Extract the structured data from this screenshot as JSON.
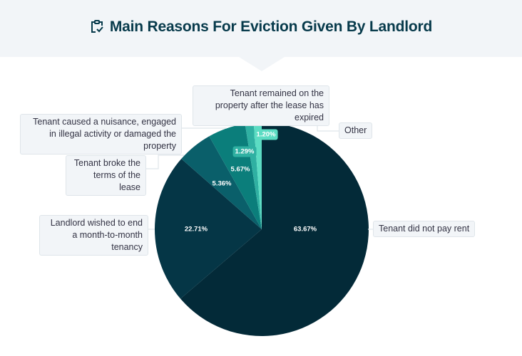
{
  "header": {
    "title": "Main Reasons For Eviction Given By Landlord",
    "icon": "clipboard-check-icon"
  },
  "chart_data": {
    "type": "pie",
    "title": "Main Reasons For Eviction Given By Landlord",
    "start": "top",
    "direction": "clockwise",
    "slices": [
      {
        "label": "Tenant did not pay rent",
        "value": 63.67,
        "value_label": "63.67%",
        "color": "#032a38"
      },
      {
        "label": "Landlord wished to end a month-to-month tenancy",
        "value": 22.71,
        "value_label": "22.71%",
        "color": "#053646"
      },
      {
        "label": "Tenant broke the terms of the lease",
        "value": 5.36,
        "value_label": "5.36%",
        "color": "#0a5f6a"
      },
      {
        "label": "Tenant caused a nuisance, engaged in illegal activity or damaged the property",
        "value": 5.67,
        "value_label": "5.67%",
        "color": "#0b7e7b"
      },
      {
        "label": "Tenant remained on the property after the lease has expired",
        "value": 1.29,
        "value_label": "1.29%",
        "color": "#2fb0a2"
      },
      {
        "label": "Other",
        "value": 1.2,
        "value_label": "1.20%",
        "color": "#5cdcc3"
      }
    ]
  }
}
